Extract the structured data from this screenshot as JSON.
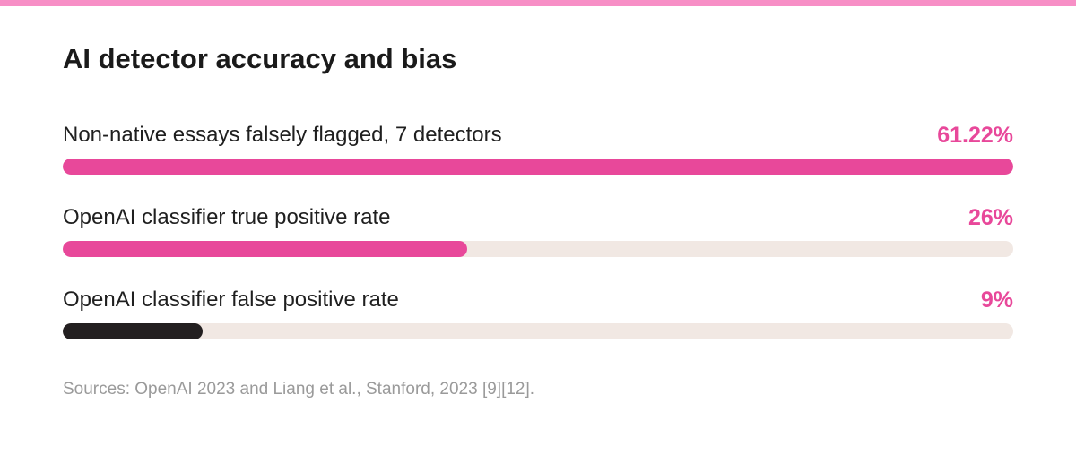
{
  "title": "AI detector accuracy and bias",
  "sources": "Sources: OpenAI 2023 and Liang et al., Stanford, 2023 [9][12].",
  "colors": {
    "accent_pink": "#e8489a",
    "dark": "#231f20",
    "track": "#f1e8e3",
    "stripe": "#f78fc6"
  },
  "chart_data": {
    "type": "bar",
    "title": "AI detector accuracy and bias",
    "orientation": "horizontal",
    "categories": [
      "Non-native essays falsely flagged, 7 detectors",
      "OpenAI classifier true positive rate",
      "OpenAI classifier false positive rate"
    ],
    "value_labels": [
      "61.22%",
      "26%",
      "9%"
    ],
    "values": [
      61.22,
      26,
      9
    ],
    "max_values": [
      61.22,
      61.22,
      61.22
    ],
    "fill_fractions": [
      1.0,
      0.425,
      0.147
    ],
    "bar_colors": [
      "#e8489a",
      "#e8489a",
      "#231f20"
    ],
    "label_colors": [
      "#e8489a",
      "#e8489a",
      "#e8489a"
    ],
    "unit": "%",
    "grid": false,
    "legend": "none"
  }
}
